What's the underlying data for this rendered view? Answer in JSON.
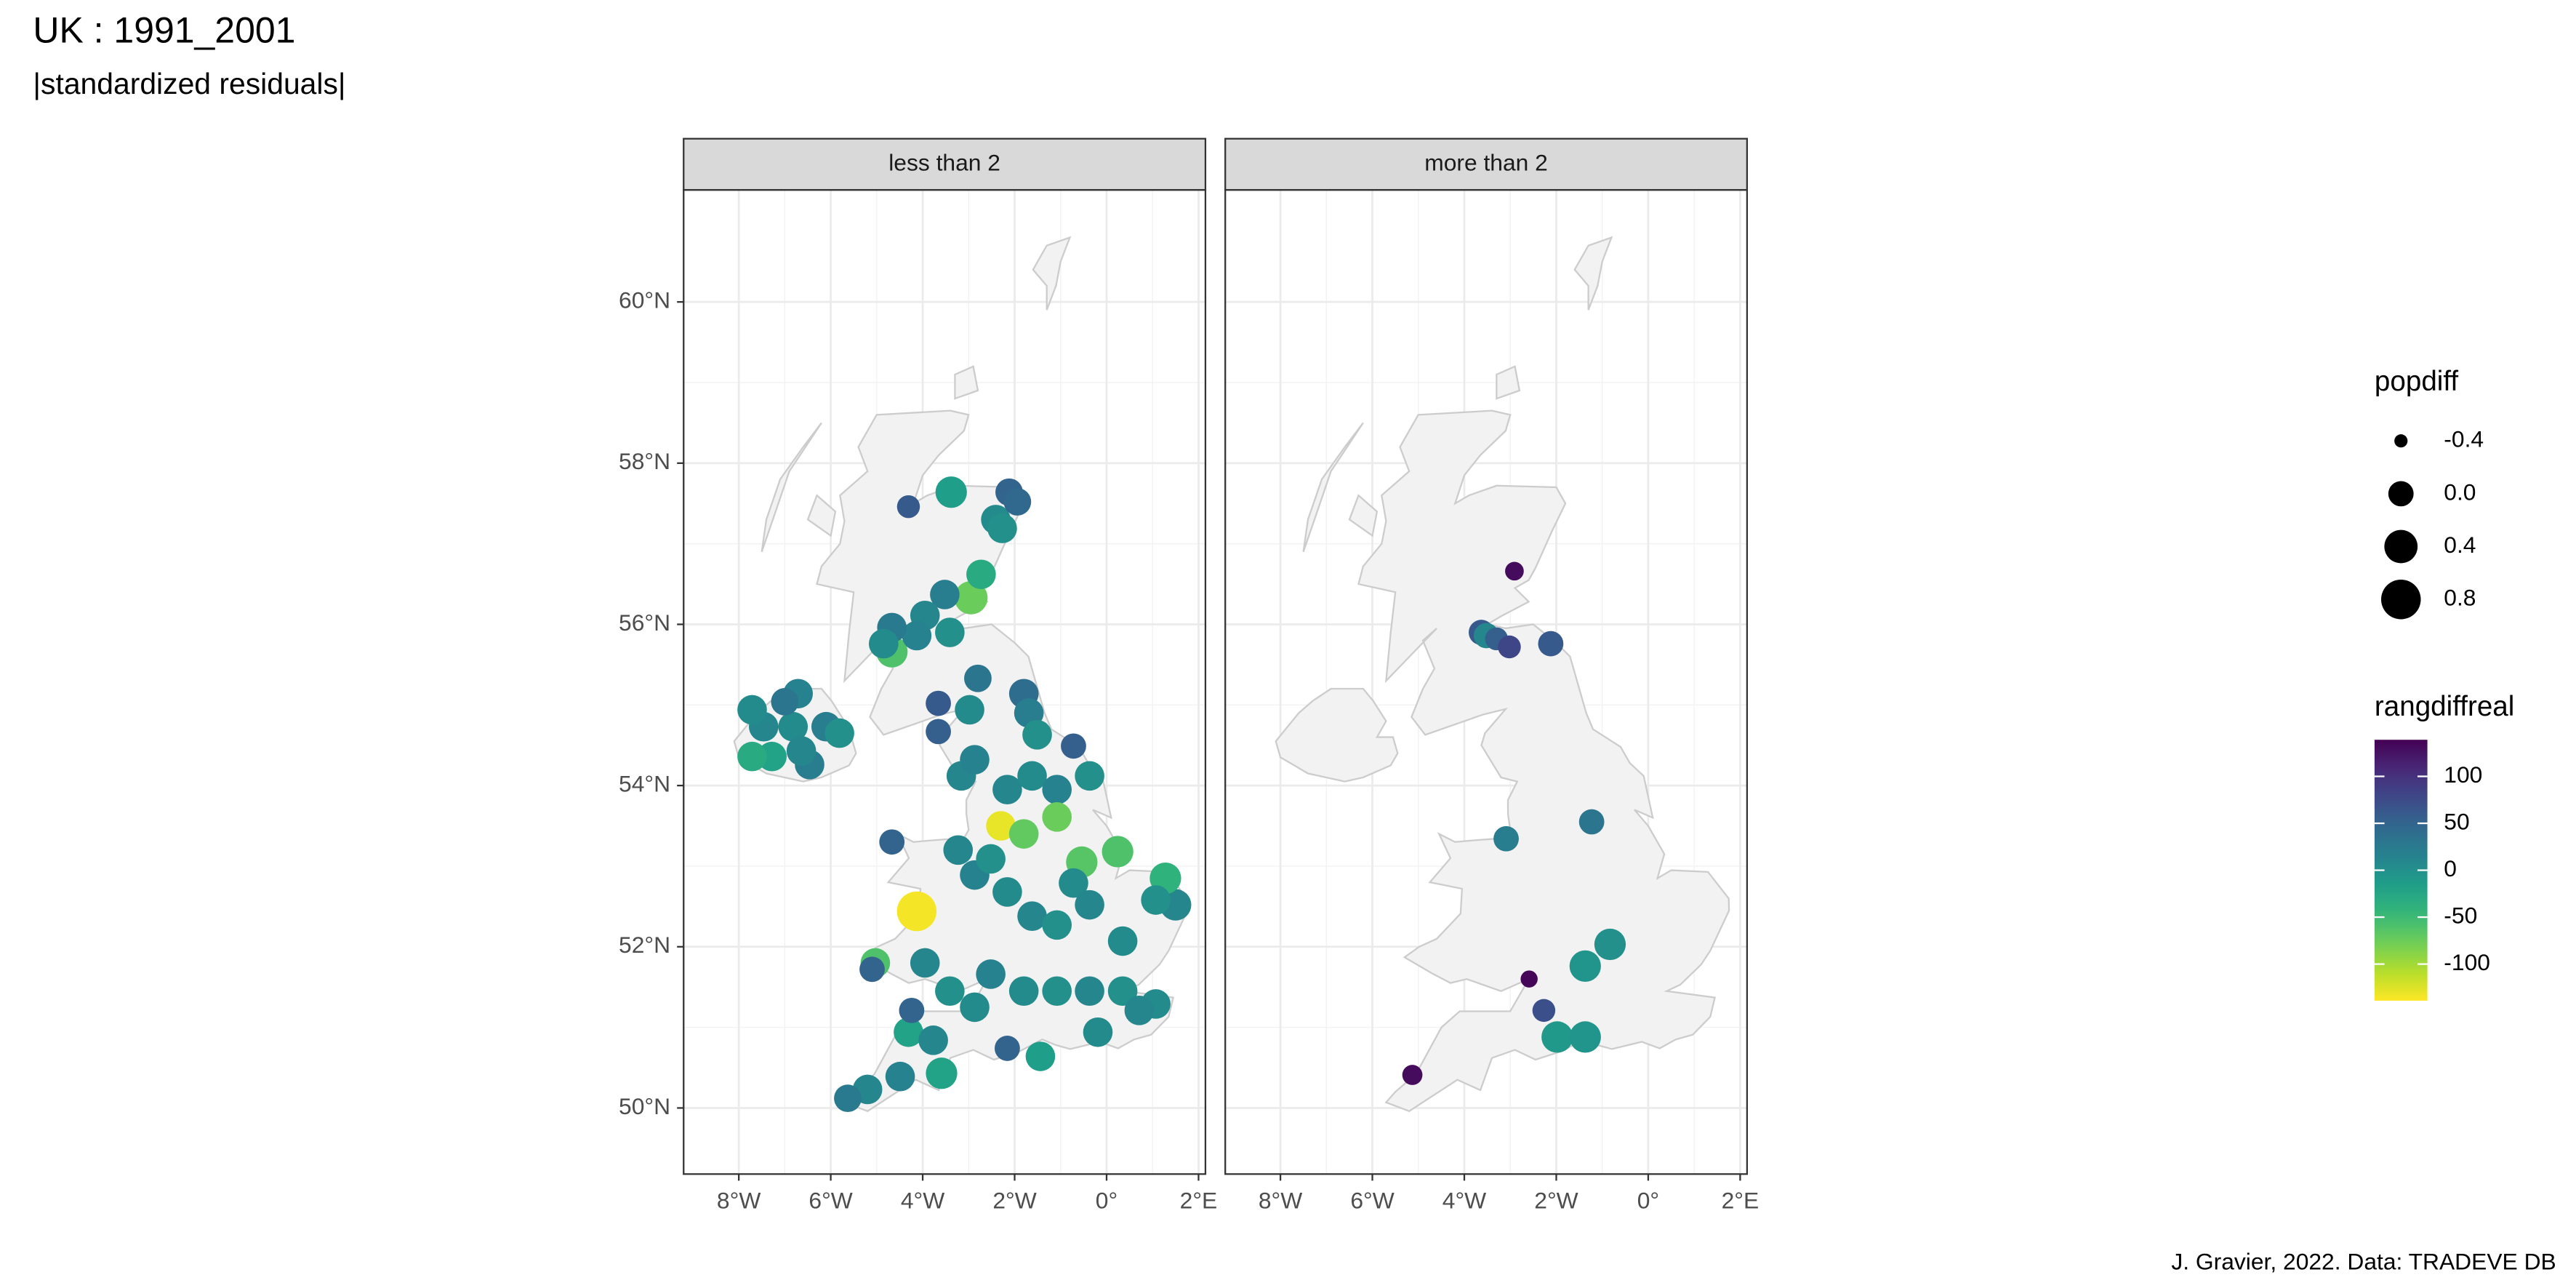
{
  "title": "UK : 1991_2001",
  "subtitle": "|standardized residuals|",
  "caption": "J. Gravier, 2022. Data: TRADEVE DB",
  "size_legend": {
    "title": "popdiff",
    "breaks": [
      -0.4,
      {
        "value": 0,
        "label": "0.0"
      },
      0.4,
      0.8
    ]
  },
  "color_legend": {
    "title": "rangdiffreal",
    "palette": "viridis",
    "direction": -1,
    "limits": [
      -139,
      139
    ],
    "ticks": [
      100,
      50,
      0,
      -50,
      -100
    ]
  },
  "chart_data": [
    {
      "type": "scatter",
      "title": "less than 2",
      "grid": true,
      "xlim": [
        -9.2,
        2.15
      ],
      "ylim": [
        49.18,
        61.39
      ],
      "xticks": [
        {
          "value": -8,
          "label": "8°W"
        },
        {
          "value": -6,
          "label": "6°W"
        },
        {
          "value": -4,
          "label": "4°W"
        },
        {
          "value": -2,
          "label": "2°W"
        },
        {
          "value": 0,
          "label": "0°"
        },
        {
          "value": 2,
          "label": "2°E"
        }
      ],
      "yticks": [
        {
          "value": 50,
          "label": "50°N"
        },
        {
          "value": 52,
          "label": "52°N"
        },
        {
          "value": 54,
          "label": "54°N"
        },
        {
          "value": 56,
          "label": "56°N"
        },
        {
          "value": 58,
          "label": "58°N"
        },
        {
          "value": 60,
          "label": "60°N"
        }
      ],
      "x": [
        -4.31,
        -3.38,
        -2.12,
        -1.94,
        -2.41,
        -2.27,
        -2.73,
        -2.95,
        -3.52,
        -3.95,
        -3.41,
        -4.13,
        -4.67,
        -4.85,
        -4.67,
        -2.8,
        -1.8,
        -1.69,
        -1.51,
        -3.66,
        -2.98,
        -3.66,
        -0.72,
        -3.16,
        -2.87,
        -2.16,
        -1.62,
        -1.08,
        -0.37,
        -2.3,
        -1.8,
        -1.08,
        -0.54,
        0.24,
        -0.72,
        -0.37,
        -4.13,
        -4.67,
        -3.23,
        -2.87,
        -2.52,
        -2.16,
        -1.62,
        -1.08,
        0.35,
        1.07,
        1.5,
        1.28,
        -5.03,
        -5.1,
        -3.95,
        -3.41,
        -2.87,
        -4.24,
        -2.52,
        -1.8,
        -1.08,
        -0.37,
        0.35,
        1.07,
        -4.31,
        -3.77,
        -2.16,
        -1.44,
        -0.19,
        0.71,
        -3.59,
        -4.49,
        -5.2,
        -5.63,
        -7.28,
        -7.46,
        -6.82,
        -6.71,
        -7.0,
        -6.1,
        -5.81,
        -6.46,
        -7.71,
        -6.64,
        -7.71
      ],
      "y": [
        57.46,
        57.64,
        57.64,
        57.52,
        57.3,
        57.19,
        56.62,
        56.33,
        56.37,
        56.11,
        55.9,
        55.86,
        55.96,
        55.76,
        55.66,
        55.33,
        55.14,
        54.9,
        54.63,
        55.02,
        54.94,
        54.67,
        54.49,
        54.12,
        54.32,
        53.95,
        54.12,
        53.95,
        54.12,
        53.5,
        53.4,
        53.61,
        53.05,
        53.18,
        52.79,
        52.52,
        52.44,
        53.3,
        53.2,
        52.89,
        53.09,
        52.68,
        52.38,
        52.27,
        52.07,
        52.58,
        52.52,
        52.85,
        51.8,
        51.72,
        51.8,
        51.45,
        51.25,
        51.21,
        51.66,
        51.45,
        51.45,
        51.45,
        51.45,
        51.29,
        50.94,
        50.84,
        50.74,
        50.64,
        50.94,
        51.21,
        50.43,
        50.39,
        50.23,
        50.12,
        54.36,
        54.73,
        54.73,
        55.14,
        55.04,
        54.73,
        54.65,
        54.26,
        54.94,
        54.43,
        54.36
      ],
      "size": [
        -0.1,
        0.3,
        0.1,
        0.1,
        0.2,
        0.2,
        0.2,
        0.4,
        0.2,
        0.2,
        0.2,
        0.2,
        0.2,
        0.2,
        0.3,
        0.1,
        0.2,
        0.2,
        0.2,
        0.0,
        0.2,
        0.0,
        0.0,
        0.2,
        0.2,
        0.2,
        0.2,
        0.2,
        0.2,
        0.2,
        0.2,
        0.2,
        0.3,
        0.3,
        0.2,
        0.2,
        0.8,
        0.0,
        0.2,
        0.2,
        0.2,
        0.2,
        0.2,
        0.2,
        0.2,
        0.2,
        0.3,
        0.3,
        0.2,
        0.0,
        0.2,
        0.2,
        0.2,
        0.0,
        0.2,
        0.2,
        0.2,
        0.2,
        0.2,
        0.2,
        0.2,
        0.2,
        0.0,
        0.2,
        0.2,
        0.2,
        0.3,
        0.2,
        0.2,
        0.1,
        0.2,
        0.2,
        0.2,
        0.2,
        0.1,
        0.2,
        0.2,
        0.2,
        0.2,
        0.2,
        0.2
      ],
      "color_value": [
        60,
        -15,
        50,
        45,
        5,
        0,
        -30,
        -75,
        20,
        10,
        0,
        15,
        25,
        5,
        -60,
        30,
        40,
        20,
        0,
        60,
        5,
        55,
        55,
        10,
        15,
        10,
        5,
        15,
        0,
        -130,
        -70,
        -75,
        -65,
        -60,
        5,
        10,
        -135,
        50,
        10,
        15,
        0,
        5,
        10,
        0,
        5,
        0,
        10,
        -40,
        -60,
        50,
        10,
        0,
        5,
        50,
        15,
        5,
        0,
        10,
        0,
        5,
        -20,
        10,
        50,
        -15,
        5,
        10,
        -20,
        15,
        10,
        25,
        -20,
        10,
        5,
        15,
        30,
        20,
        0,
        20,
        5,
        10,
        -30
      ]
    },
    {
      "type": "scatter",
      "title": "more than 2",
      "grid": true,
      "xlim": [
        -9.2,
        2.15
      ],
      "ylim": [
        49.18,
        61.39
      ],
      "xticks": [
        {
          "value": -8,
          "label": "8°W"
        },
        {
          "value": -6,
          "label": "6°W"
        },
        {
          "value": -4,
          "label": "4°W"
        },
        {
          "value": -2,
          "label": "2°W"
        },
        {
          "value": 0,
          "label": "0°"
        },
        {
          "value": 2,
          "label": "2°E"
        }
      ],
      "yticks": [
        {
          "value": 50,
          "label": "50°N"
        },
        {
          "value": 52,
          "label": "52°N"
        },
        {
          "value": 54,
          "label": "54°N"
        },
        {
          "value": 56,
          "label": "56°N"
        },
        {
          "value": 58,
          "label": "58°N"
        },
        {
          "value": 60,
          "label": "60°N"
        }
      ],
      "x": [
        -2.91,
        -3.63,
        -3.52,
        -3.3,
        -3.02,
        -2.12,
        -1.23,
        -3.09,
        -0.83,
        -1.37,
        -2.59,
        -2.27,
        -1.98,
        -1.37,
        -5.13
      ],
      "y": [
        56.66,
        55.9,
        55.86,
        55.82,
        55.72,
        55.76,
        53.55,
        53.34,
        52.03,
        51.76,
        51.6,
        51.21,
        50.88,
        50.88,
        50.41
      ],
      "size": [
        -0.25,
        0.0,
        0.0,
        -0.1,
        -0.1,
        0.0,
        0.0,
        0.0,
        0.3,
        0.3,
        -0.3,
        -0.1,
        0.3,
        0.3,
        -0.2
      ],
      "color_value": [
        130,
        60,
        10,
        55,
        80,
        60,
        30,
        20,
        0,
        -5,
        135,
        70,
        -10,
        -5,
        130
      ]
    }
  ]
}
